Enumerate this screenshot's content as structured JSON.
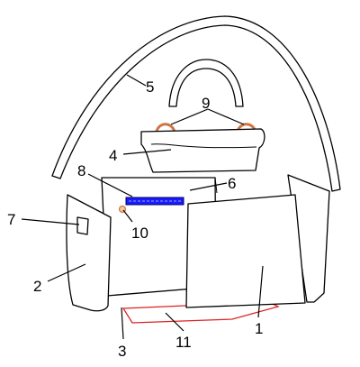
{
  "diagram": {
    "labels": [
      "1",
      "2",
      "3",
      "4",
      "5",
      "6",
      "7",
      "8",
      "9",
      "10",
      "11"
    ]
  },
  "colors": {
    "outline": "#000000",
    "bar_fill": "#1a1aff",
    "bar_outline": "#000066",
    "red_outline": "#dd2222",
    "hook_fill": "#f3c9a0",
    "hook_stroke": "#cc7744"
  }
}
